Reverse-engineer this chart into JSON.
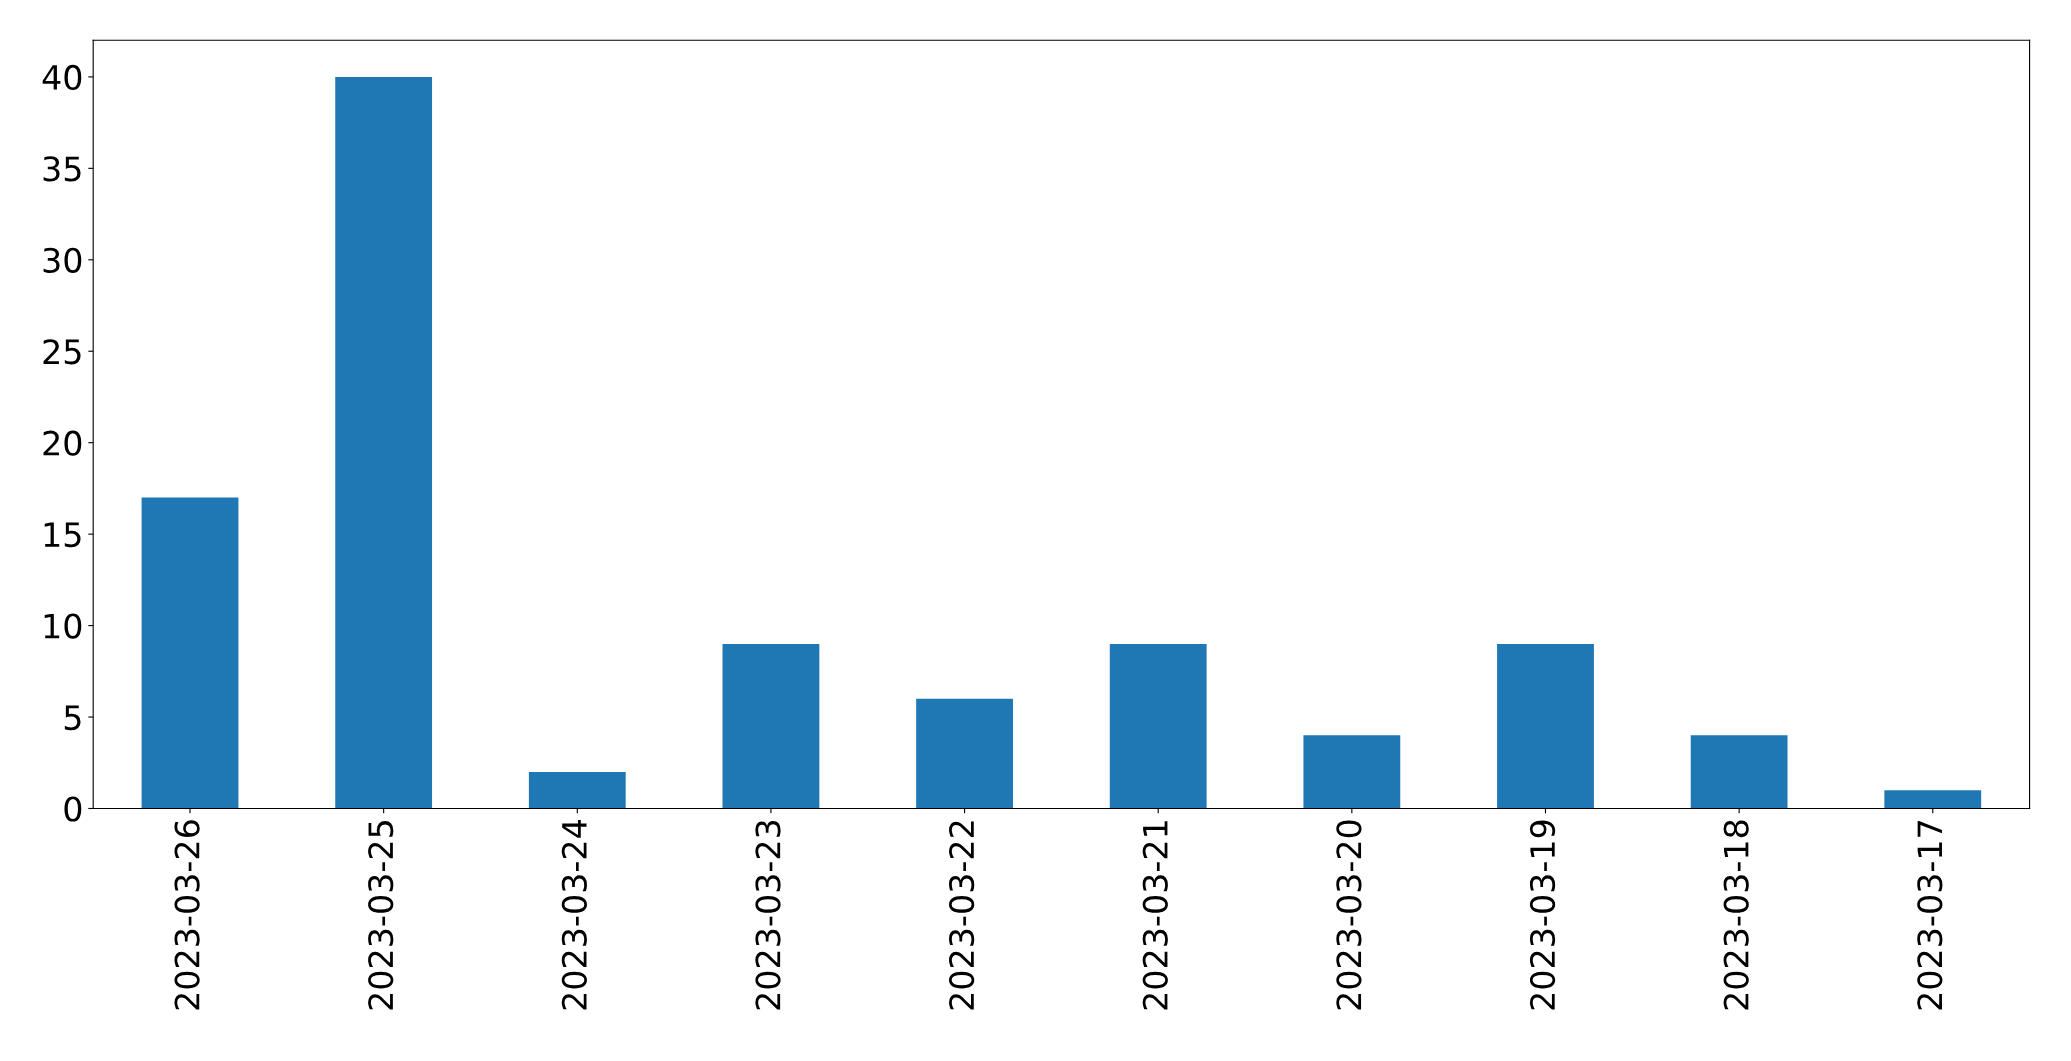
{
  "chart_data": {
    "type": "bar",
    "categories": [
      "2023-03-26",
      "2023-03-25",
      "2023-03-24",
      "2023-03-23",
      "2023-03-22",
      "2023-03-21",
      "2023-03-20",
      "2023-03-19",
      "2023-03-18",
      "2023-03-17"
    ],
    "values": [
      17,
      40,
      2,
      9,
      6,
      9,
      4,
      9,
      4,
      1
    ],
    "color": "#1f77b4",
    "ylim": [
      0,
      42
    ],
    "yticks": [
      0,
      5,
      10,
      15,
      20,
      25,
      30,
      35,
      40
    ],
    "grid": false,
    "legend": false
  }
}
